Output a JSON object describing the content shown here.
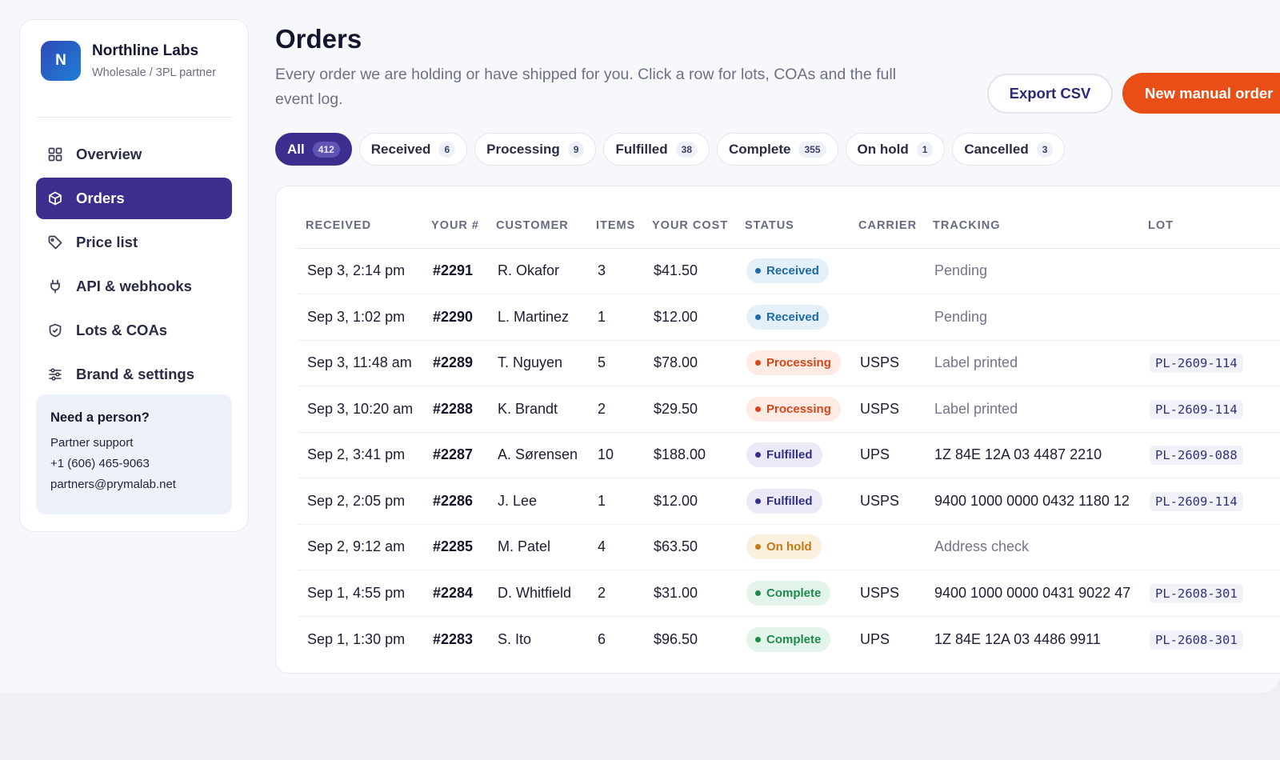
{
  "brand": {
    "initial": "N",
    "name": "Northline Labs",
    "subtitle": "Wholesale / 3PL partner"
  },
  "nav": {
    "overview": "Overview",
    "orders": "Orders",
    "price_list": "Price list",
    "api": "API & webhooks",
    "lots": "Lots & COAs",
    "brand_settings": "Brand & settings",
    "active": "Orders"
  },
  "help": {
    "title": "Need a person?",
    "line1": "Partner support",
    "phone": "+1 (606) 465-9063",
    "email": "partners@prymalab.net"
  },
  "page": {
    "title": "Orders",
    "subtitle": "Every order we are holding or have shipped for you. Click a row for lots, COAs and the full event log.",
    "export_label": "Export CSV",
    "new_label": "New manual order"
  },
  "filters": [
    {
      "label": "All",
      "count": "412",
      "active": true
    },
    {
      "label": "Received",
      "count": "6"
    },
    {
      "label": "Processing",
      "count": "9"
    },
    {
      "label": "Fulfilled",
      "count": "38"
    },
    {
      "label": "Complete",
      "count": "355"
    },
    {
      "label": "On hold",
      "count": "1"
    },
    {
      "label": "Cancelled",
      "count": "3"
    }
  ],
  "table": {
    "headers": {
      "received": "RECEIVED",
      "your_num": "YOUR #",
      "customer": "CUSTOMER",
      "items": "ITEMS",
      "cost": "YOUR COST",
      "status": "STATUS",
      "carrier": "CARRIER",
      "tracking": "TRACKING",
      "lot": "LOT"
    },
    "rows": [
      {
        "received": "Sep 3, 2:14 pm",
        "num": "#2291",
        "customer": "R. Okafor",
        "items": "3",
        "cost": "$41.50",
        "status": "Received",
        "carrier": "",
        "tracking": "Pending",
        "lot": ""
      },
      {
        "received": "Sep 3, 1:02 pm",
        "num": "#2290",
        "customer": "L. Martinez",
        "items": "1",
        "cost": "$12.00",
        "status": "Received",
        "carrier": "",
        "tracking": "Pending",
        "lot": ""
      },
      {
        "received": "Sep 3, 11:48 am",
        "num": "#2289",
        "customer": "T. Nguyen",
        "items": "5",
        "cost": "$78.00",
        "status": "Processing",
        "carrier": "USPS",
        "tracking": "Label printed",
        "lot": "PL-2609-114"
      },
      {
        "received": "Sep 3, 10:20 am",
        "num": "#2288",
        "customer": "K. Brandt",
        "items": "2",
        "cost": "$29.50",
        "status": "Processing",
        "carrier": "USPS",
        "tracking": "Label printed",
        "lot": "PL-2609-114"
      },
      {
        "received": "Sep 2, 3:41 pm",
        "num": "#2287",
        "customer": "A. Sørensen",
        "items": "10",
        "cost": "$188.00",
        "status": "Fulfilled",
        "carrier": "UPS",
        "tracking": "1Z 84E 12A 03 4487 2210",
        "lot": "PL-2609-088"
      },
      {
        "received": "Sep 2, 2:05 pm",
        "num": "#2286",
        "customer": "J. Lee",
        "items": "1",
        "cost": "$12.00",
        "status": "Fulfilled",
        "carrier": "USPS",
        "tracking": "9400 1000 0000 0432 1180 12",
        "lot": "PL-2609-114"
      },
      {
        "received": "Sep 2, 9:12 am",
        "num": "#2285",
        "customer": "M. Patel",
        "items": "4",
        "cost": "$63.50",
        "status": "On hold",
        "carrier": "",
        "tracking": "Address check",
        "lot": ""
      },
      {
        "received": "Sep 1, 4:55 pm",
        "num": "#2284",
        "customer": "D. Whitfield",
        "items": "2",
        "cost": "$31.00",
        "status": "Complete",
        "carrier": "USPS",
        "tracking": "9400 1000 0000 0431 9022 47",
        "lot": "PL-2608-301"
      },
      {
        "received": "Sep 1, 1:30 pm",
        "num": "#2283",
        "customer": "S. Ito",
        "items": "6",
        "cost": "$96.50",
        "status": "Complete",
        "carrier": "UPS",
        "tracking": "1Z 84E 12A 03 4486 9911",
        "lot": "PL-2608-301"
      }
    ]
  },
  "status_colors": {
    "Received": {
      "bg": "#e3f0fa",
      "fg": "#1e6aa8",
      "dot": "#1e6aa8"
    },
    "Processing": {
      "bg": "#fdebe4",
      "fg": "#d4461a",
      "dot": "#d4461a"
    },
    "Fulfilled": {
      "bg": "#ebe9f7",
      "fg": "#34308a",
      "dot": "#34308a"
    },
    "On hold": {
      "bg": "#fbf0de",
      "fg": "#c47a12",
      "dot": "#c47a12"
    },
    "Complete": {
      "bg": "#e3f4ea",
      "fg": "#1d8a4c",
      "dot": "#1d8a4c"
    }
  },
  "colors": {
    "accent": "#3b2e8f",
    "primary_action": "#e94e16"
  }
}
